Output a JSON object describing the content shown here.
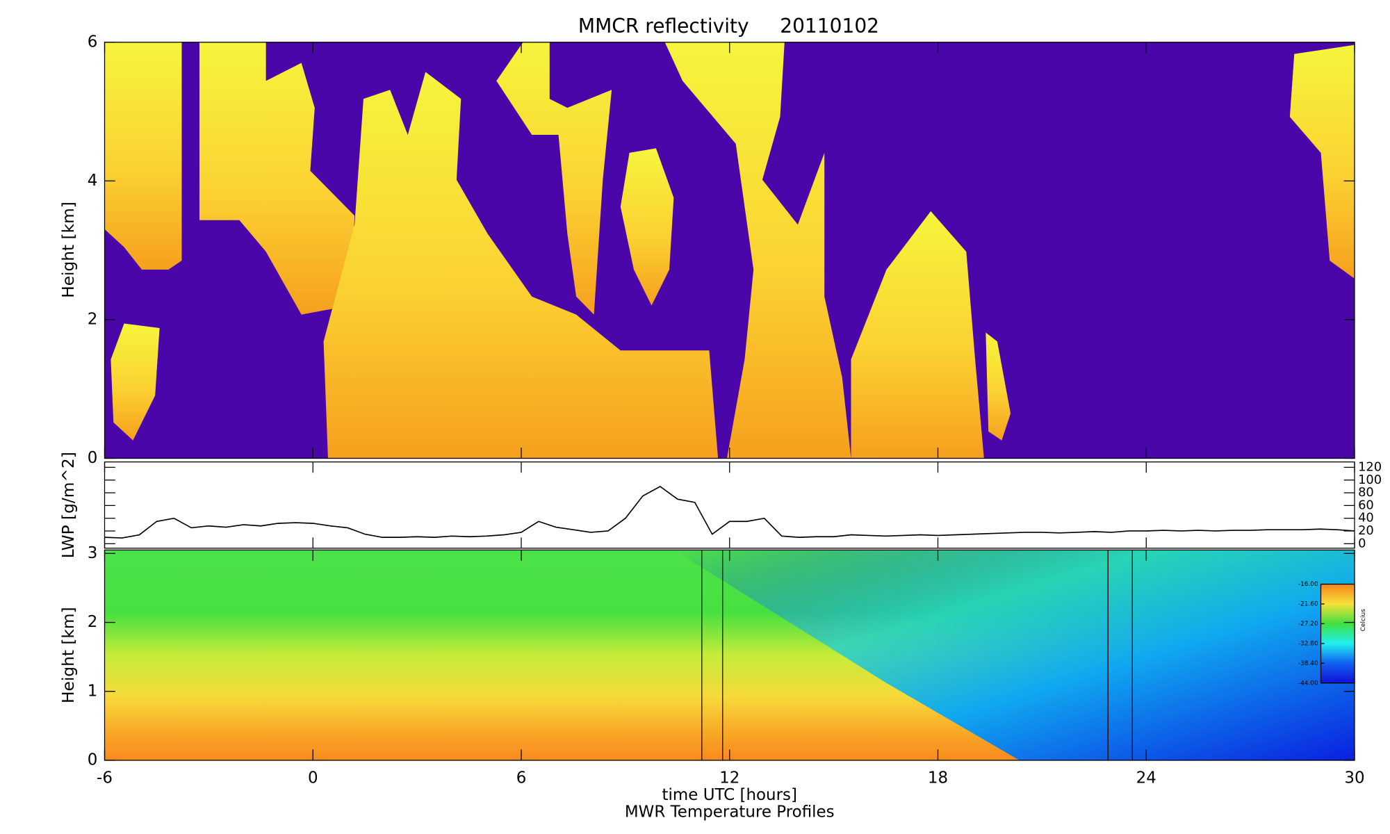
{
  "chart_data": [
    {
      "type": "heatmap",
      "title": "MMCR reflectivity     20110102",
      "y_label": "Height [km]",
      "xlim": [
        -6,
        30
      ],
      "ylim": [
        0,
        6
      ],
      "yticks": [
        0,
        2,
        4,
        6
      ]
    },
    {
      "type": "line",
      "y_label": "LWP [g/m^2]",
      "xlim": [
        -6,
        30
      ],
      "ylim": [
        0,
        120
      ],
      "yticks": [
        0,
        20,
        40,
        60,
        80,
        100,
        120
      ],
      "color": "#000000",
      "x": [
        -6,
        -5.5,
        -5,
        -4.5,
        -4,
        -3.5,
        -3,
        -2.5,
        -2,
        -1.5,
        -1,
        -0.5,
        0,
        0.5,
        1,
        1.5,
        2,
        2.5,
        3,
        3.5,
        4,
        4.5,
        5,
        5.5,
        6,
        6.5,
        7,
        7.5,
        8,
        8.5,
        9,
        9.5,
        10,
        10.5,
        11,
        11.5,
        12,
        12.5,
        13,
        13.5,
        14,
        14.5,
        15,
        15.5,
        16,
        16.5,
        17,
        17.5,
        18,
        18.5,
        19,
        19.5,
        20,
        20.5,
        21,
        21.5,
        22,
        22.5,
        23,
        23.5,
        24,
        24.5,
        25,
        25.5,
        26,
        26.5,
        27,
        27.5,
        28,
        28.5,
        29,
        29.5,
        30
      ],
      "values": [
        10,
        9,
        14,
        35,
        40,
        25,
        28,
        26,
        30,
        28,
        32,
        33,
        32,
        28,
        25,
        15,
        10,
        10,
        11,
        10,
        12,
        11,
        12,
        14,
        18,
        35,
        26,
        22,
        18,
        20,
        40,
        75,
        90,
        70,
        65,
        15,
        35,
        35,
        40,
        12,
        10,
        11,
        11,
        14,
        13,
        12,
        13,
        14,
        13,
        14,
        15,
        16,
        17,
        18,
        18,
        17,
        18,
        19,
        18,
        20,
        20,
        21,
        20,
        21,
        20,
        21,
        21,
        22,
        22,
        22,
        23,
        22,
        20
      ]
    },
    {
      "type": "contour",
      "subtitle": "MWR Temperature Profiles",
      "x_label": "time UTC [hours]",
      "y_label": "Height [km]",
      "xlim": [
        -6,
        30
      ],
      "xticks": [
        -6,
        0,
        6,
        12,
        18,
        24,
        30
      ],
      "ylim": [
        0,
        3.05
      ],
      "yticks": [
        0,
        1,
        2,
        3
      ],
      "vlines": [
        11.2,
        11.8,
        22.9,
        23.6
      ],
      "colorbar": {
        "label": "Celcius",
        "lim": [
          -44,
          -16
        ],
        "ticks": [
          {
            "value": -16,
            "label": "-16.00"
          },
          {
            "value": -21.6,
            "label": "-21.60"
          },
          {
            "value": -27.2,
            "label": "-27.20"
          },
          {
            "value": -32.8,
            "label": "-32.80"
          },
          {
            "value": -38.4,
            "label": "-38.40"
          },
          {
            "value": -44,
            "label": "-44.00"
          }
        ]
      }
    }
  ]
}
